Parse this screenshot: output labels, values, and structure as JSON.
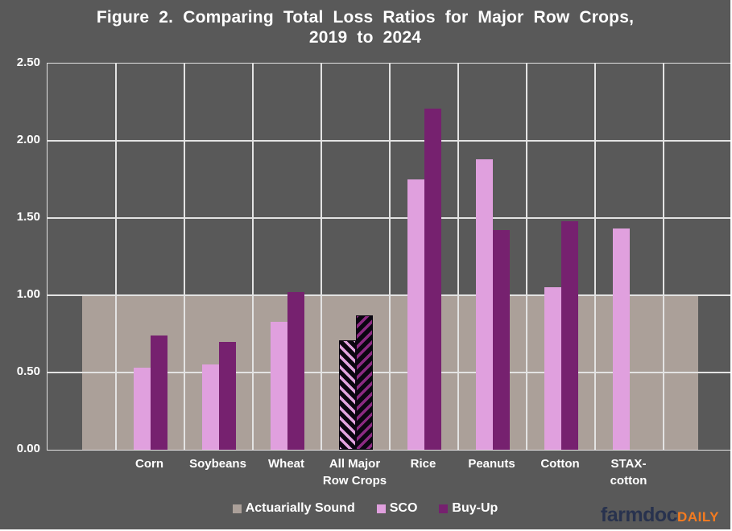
{
  "title": {
    "line1": "Figure 2. Comparing Total Loss Ratios for Major Row Crops,",
    "line2": "2019 to 2024"
  },
  "logo": {
    "farmdoc": "farmdoc",
    "daily": "DAILY"
  },
  "colors": {
    "background": "#595959",
    "gridline": "#e3e3e3",
    "text": "#ffffff",
    "band_tan": "#aba099",
    "sco_pink": "#e0a0de",
    "buyup_purple": "#76216f",
    "hatch_black": "#0b0611",
    "hatch_purple": "#8c2a82",
    "logo_navy": "#28324e",
    "logo_orange": "#f47b20"
  },
  "chart_data": {
    "type": "bar",
    "title": "Figure 2. Comparing Total Loss Ratios for Major Row Crops, 2019 to 2024",
    "categories": [
      "Corn",
      "Soybeans",
      "Wheat",
      "All Major Row Crops",
      "Rice",
      "Peanuts",
      "Cotton",
      "STAX-cotton"
    ],
    "category_label_lines": [
      [
        "Corn"
      ],
      [
        "Soybeans"
      ],
      [
        "Wheat"
      ],
      [
        "All Major",
        "Row Crops"
      ],
      [
        "Rice"
      ],
      [
        "Peanuts"
      ],
      [
        "Cotton"
      ],
      [
        "STAX-",
        "cotton"
      ]
    ],
    "series": [
      {
        "name": "SCO",
        "color": "#e0a0de",
        "values": [
          0.53,
          0.55,
          0.83,
          0.71,
          1.75,
          1.88,
          1.05,
          1.43
        ]
      },
      {
        "name": "Buy-Up",
        "color": "#76216f",
        "values": [
          0.74,
          0.7,
          1.02,
          0.87,
          2.21,
          1.42,
          1.48,
          null
        ]
      }
    ],
    "hatched_category_index": 3,
    "band": {
      "name": "Actuarially Sound",
      "value": 1.0,
      "color": "#aba099"
    },
    "ylim": [
      0,
      2.5
    ],
    "yticks": [
      0,
      0.5,
      1.0,
      1.5,
      2.0,
      2.5
    ],
    "ytick_labels": [
      "0.00",
      "0.50",
      "1.00",
      "1.50",
      "2.00",
      "2.50"
    ],
    "xlabel": "",
    "ylabel": "",
    "grid": true,
    "legend_position": "bottom",
    "legend": {
      "items": [
        {
          "label": "Actuarially Sound",
          "color": "#aba099"
        },
        {
          "label": "SCO",
          "color": "#e0a0de"
        },
        {
          "label": "Buy-Up",
          "color": "#76216f"
        }
      ]
    }
  }
}
